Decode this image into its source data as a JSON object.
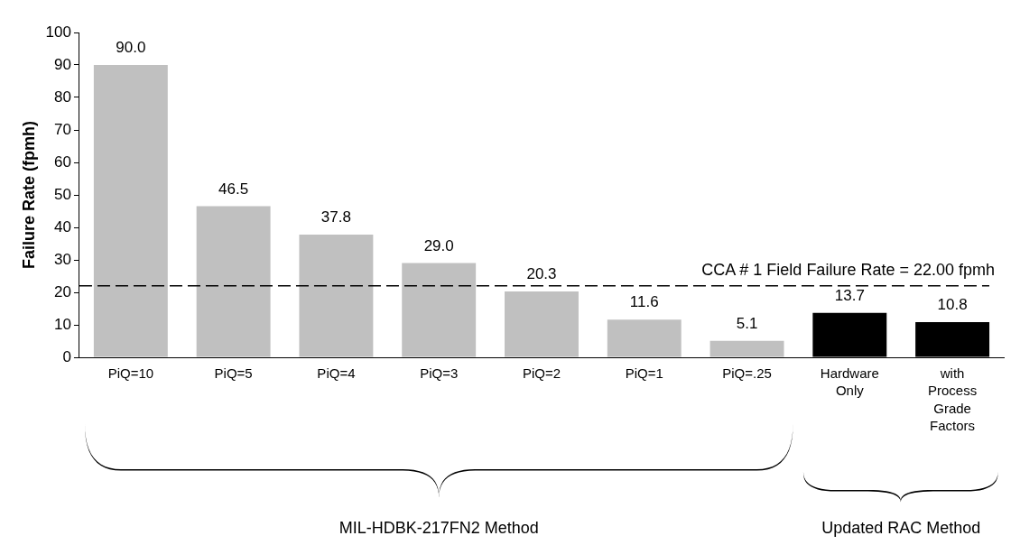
{
  "chart_data": {
    "type": "bar",
    "ylabel": "Failure Rate (fpmh)",
    "categories": [
      "PiQ=10",
      "PiQ=5",
      "PiQ=4",
      "PiQ=3",
      "PiQ=2",
      "PiQ=1",
      "PiQ=.25",
      "Hardware Only",
      "with Process Grade Factors"
    ],
    "values": [
      90.0,
      46.5,
      37.8,
      29.0,
      20.3,
      11.6,
      5.1,
      13.7,
      10.8
    ],
    "colors": [
      "#c0c0c0",
      "#c0c0c0",
      "#c0c0c0",
      "#c0c0c0",
      "#c0c0c0",
      "#c0c0c0",
      "#c0c0c0",
      "#000000",
      "#000000"
    ],
    "ylim": [
      0,
      100
    ],
    "yticks": [
      0,
      10,
      20,
      30,
      40,
      50,
      60,
      70,
      80,
      90,
      100
    ],
    "value_labels": [
      "90.0",
      "46.5",
      "37.8",
      "29.0",
      "20.3",
      "11.6",
      "5.1",
      "13.7",
      "10.8"
    ],
    "grid": false,
    "legend": false,
    "ref_lines": [
      {
        "axis": "y",
        "value": 22,
        "label": "CCA # 1 Field Failure Rate = 22.00 fpmh",
        "color": "#000000",
        "line_style": "dashed"
      }
    ],
    "annotations": [
      "MIL-HDBK-217FN2 Method",
      "Updated RAC Method"
    ]
  }
}
